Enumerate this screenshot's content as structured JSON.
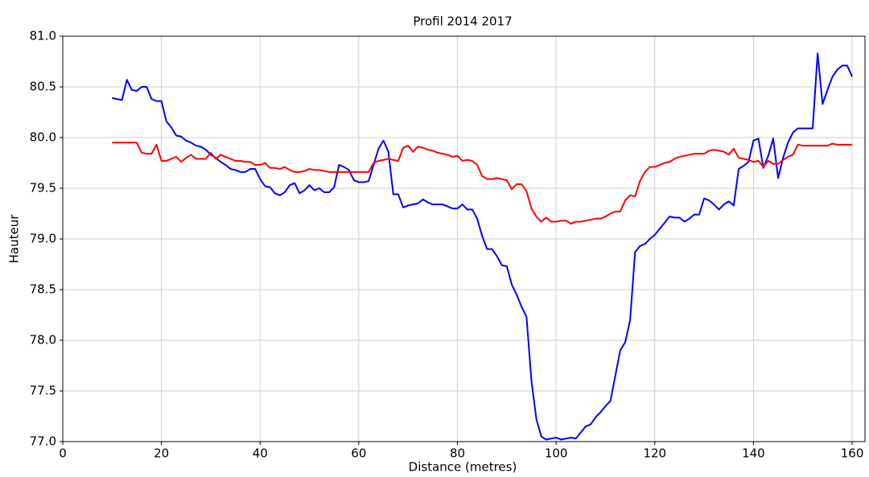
{
  "chart_data": {
    "type": "line",
    "title": "Profil 2014 2017",
    "x_label": "Distance (metres)",
    "y_label": "Hauteur",
    "x": [
      10,
      11,
      12,
      13,
      14,
      15,
      16,
      17,
      18,
      19,
      20,
      21,
      22,
      23,
      24,
      25,
      26,
      27,
      28,
      29,
      30,
      31,
      32,
      33,
      34,
      35,
      36,
      37,
      38,
      39,
      40,
      41,
      42,
      43,
      44,
      45,
      46,
      47,
      48,
      49,
      50,
      51,
      52,
      53,
      54,
      55,
      56,
      57,
      58,
      59,
      60,
      61,
      62,
      63,
      64,
      65,
      66,
      67,
      68,
      69,
      70,
      71,
      72,
      73,
      74,
      75,
      76,
      77,
      78,
      79,
      80,
      81,
      82,
      83,
      84,
      85,
      86,
      87,
      88,
      89,
      90,
      91,
      92,
      93,
      94,
      95,
      96,
      97,
      98,
      99,
      100,
      101,
      102,
      103,
      104,
      105,
      106,
      107,
      108,
      109,
      110,
      111,
      112,
      113,
      114,
      115,
      116,
      117,
      118,
      119,
      120,
      121,
      122,
      123,
      124,
      125,
      126,
      127,
      128,
      129,
      130,
      131,
      132,
      133,
      134,
      135,
      136,
      137,
      138,
      139,
      140,
      141,
      142,
      143,
      144,
      145,
      146,
      147,
      148,
      149,
      150,
      151,
      152,
      153,
      154,
      155,
      156,
      157,
      158,
      159,
      160
    ],
    "series": [
      {
        "color": "#0000ff",
        "values": [
          80.39,
          80.38,
          80.37,
          80.57,
          80.47,
          80.46,
          80.5,
          80.5,
          80.38,
          80.36,
          80.36,
          80.16,
          80.1,
          80.02,
          80.01,
          79.97,
          79.95,
          79.92,
          79.91,
          79.88,
          79.83,
          79.8,
          79.76,
          79.73,
          79.69,
          79.68,
          79.66,
          79.66,
          79.69,
          79.69,
          79.59,
          79.52,
          79.51,
          79.45,
          79.43,
          79.46,
          79.53,
          79.55,
          79.45,
          79.48,
          79.53,
          79.48,
          79.5,
          79.46,
          79.46,
          79.51,
          79.73,
          79.71,
          79.68,
          79.58,
          79.56,
          79.56,
          79.57,
          79.73,
          79.89,
          79.97,
          79.86,
          79.44,
          79.44,
          79.31,
          79.33,
          79.34,
          79.35,
          79.39,
          79.36,
          79.34,
          79.34,
          79.34,
          79.32,
          79.3,
          79.3,
          79.34,
          79.29,
          79.29,
          79.2,
          79.03,
          78.9,
          78.9,
          78.83,
          78.74,
          78.73,
          78.55,
          78.45,
          78.33,
          78.23,
          77.6,
          77.22,
          77.05,
          77.02,
          77.03,
          77.04,
          77.02,
          77.03,
          77.04,
          77.03,
          77.09,
          77.15,
          77.17,
          77.24,
          77.29,
          77.35,
          77.4,
          77.65,
          77.9,
          77.98,
          78.2,
          78.87,
          78.93,
          78.95,
          79.0,
          79.04,
          79.1,
          79.16,
          79.22,
          79.21,
          79.21,
          79.17,
          79.2,
          79.24,
          79.24,
          79.4,
          79.38,
          79.34,
          79.29,
          79.34,
          79.37,
          79.33,
          79.69,
          79.72,
          79.76,
          79.97,
          79.99,
          79.7,
          79.82,
          79.99,
          79.6,
          79.8,
          79.95,
          80.05,
          80.09,
          80.09,
          80.09,
          80.09,
          80.83,
          80.33,
          80.47,
          80.6,
          80.67,
          80.71,
          80.71,
          80.6
        ]
      },
      {
        "color": "#ff0000",
        "values": [
          79.95,
          79.95,
          79.95,
          79.95,
          79.95,
          79.95,
          79.85,
          79.84,
          79.84,
          79.93,
          79.77,
          79.77,
          79.79,
          79.81,
          79.76,
          79.8,
          79.83,
          79.79,
          79.79,
          79.79,
          79.85,
          79.79,
          79.83,
          79.81,
          79.79,
          79.77,
          79.77,
          79.76,
          79.76,
          79.73,
          79.73,
          79.75,
          79.7,
          79.7,
          79.69,
          79.71,
          79.68,
          79.66,
          79.66,
          79.67,
          79.69,
          79.68,
          79.68,
          79.67,
          79.66,
          79.66,
          79.66,
          79.66,
          79.66,
          79.66,
          79.66,
          79.66,
          79.66,
          79.75,
          79.77,
          79.78,
          79.79,
          79.78,
          79.77,
          79.9,
          79.92,
          79.86,
          79.91,
          79.9,
          79.88,
          79.87,
          79.85,
          79.84,
          79.83,
          79.81,
          79.82,
          79.77,
          79.78,
          79.77,
          79.73,
          79.62,
          79.59,
          79.59,
          79.6,
          79.59,
          79.58,
          79.49,
          79.54,
          79.54,
          79.47,
          79.3,
          79.22,
          79.17,
          79.21,
          79.17,
          79.17,
          79.18,
          79.18,
          79.15,
          79.17,
          79.17,
          79.18,
          79.19,
          79.2,
          79.2,
          79.22,
          79.25,
          79.27,
          79.27,
          79.38,
          79.43,
          79.42,
          79.57,
          79.66,
          79.71,
          79.71,
          79.73,
          79.75,
          79.76,
          79.79,
          79.81,
          79.82,
          79.83,
          79.84,
          79.84,
          79.84,
          79.87,
          79.88,
          79.87,
          79.86,
          79.83,
          79.89,
          79.8,
          79.79,
          79.78,
          79.76,
          79.77,
          79.71,
          79.77,
          79.74,
          79.74,
          79.78,
          79.81,
          79.83,
          79.93,
          79.92,
          79.92,
          79.92,
          79.92,
          79.92,
          79.92,
          79.94,
          79.93,
          79.93,
          79.93,
          79.93
        ]
      }
    ],
    "xlim": [
      0,
      162.6
    ],
    "xticks": [
      0,
      20,
      40,
      60,
      80,
      100,
      120,
      140,
      160
    ],
    "ylim": [
      77,
      81
    ],
    "yticks": [
      {
        "value": 77,
        "label": "77.0"
      },
      77.5,
      {
        "value": 78,
        "label": "78.0"
      },
      78.5,
      {
        "value": 79,
        "label": "79.0"
      },
      79.5,
      {
        "value": 80,
        "label": "80.0"
      },
      80.5,
      {
        "value": 81,
        "label": "81.0"
      }
    ],
    "grid": true
  }
}
